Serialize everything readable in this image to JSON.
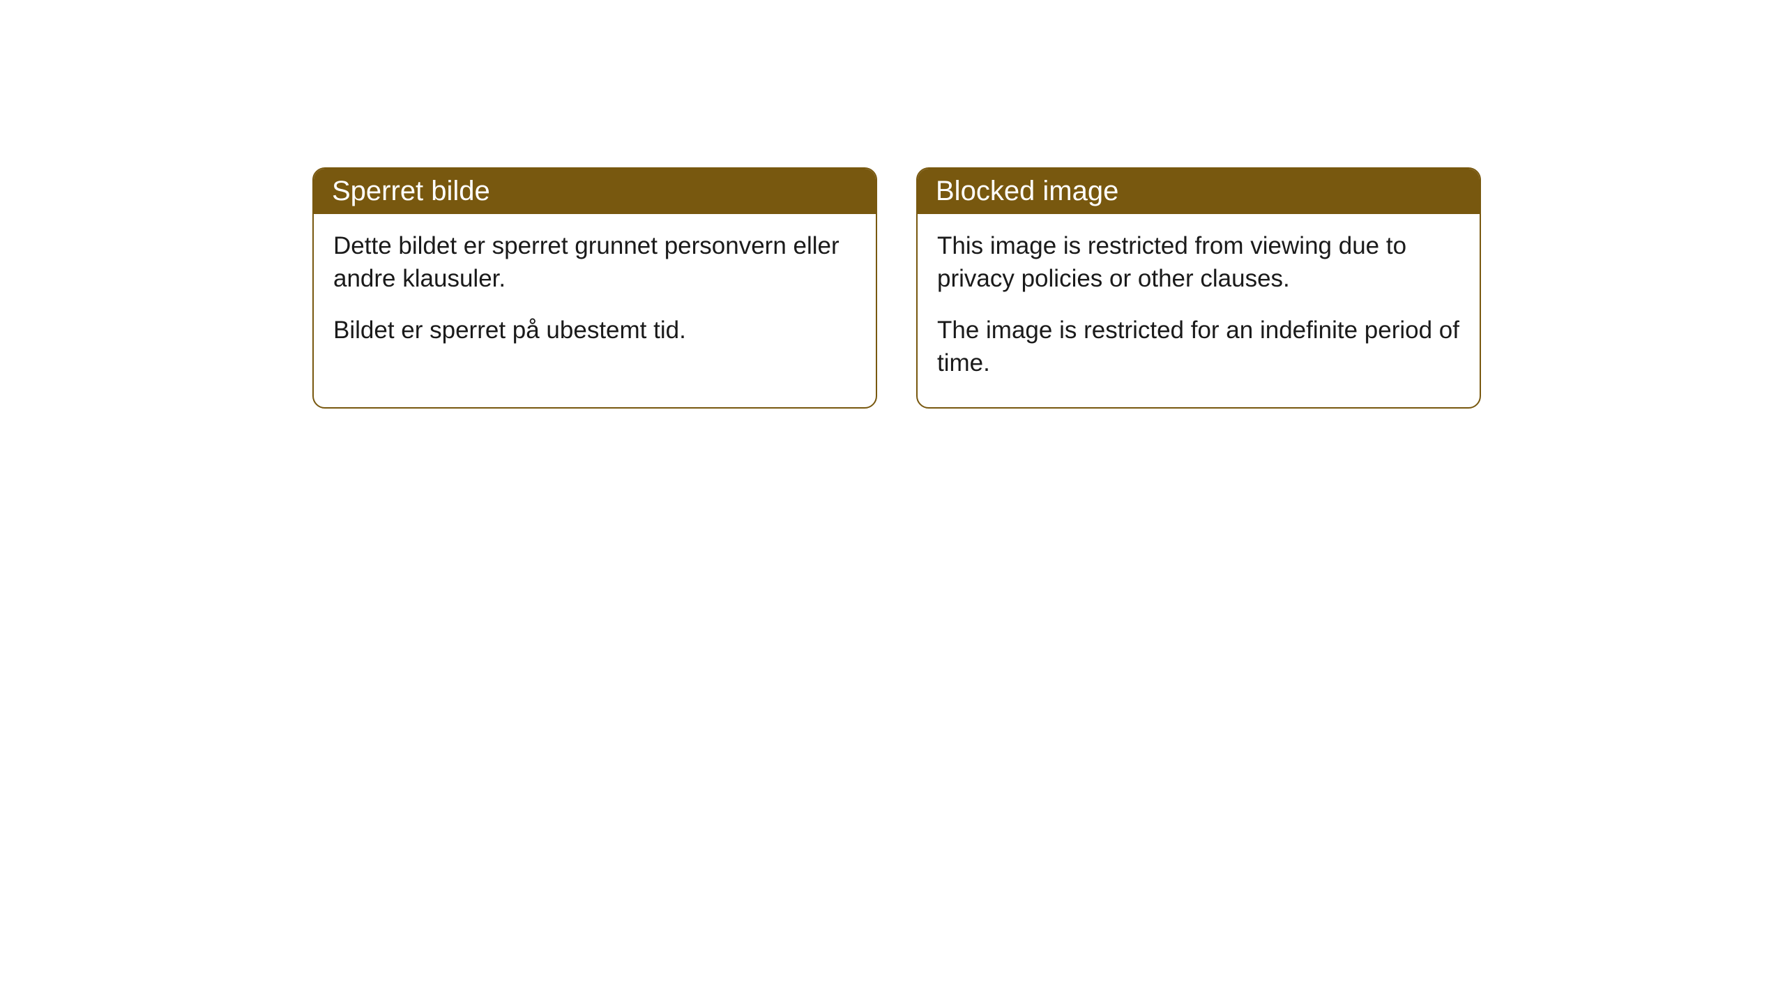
{
  "cards": [
    {
      "title": "Sperret bilde",
      "paragraph1": "Dette bildet er sperret grunnet personvern eller andre klausuler.",
      "paragraph2": "Bildet er sperret på ubestemt tid."
    },
    {
      "title": "Blocked image",
      "paragraph1": "This image is restricted from viewing due to privacy policies or other clauses.",
      "paragraph2": "The image is restricted for an indefinite period of time."
    }
  ],
  "styling": {
    "header_background": "#78580f",
    "header_text_color": "#ffffff",
    "border_color": "#78580f",
    "body_background": "#ffffff",
    "body_text_color": "#1a1a1a",
    "border_radius": 18,
    "title_fontsize": 40,
    "body_fontsize": 35
  }
}
